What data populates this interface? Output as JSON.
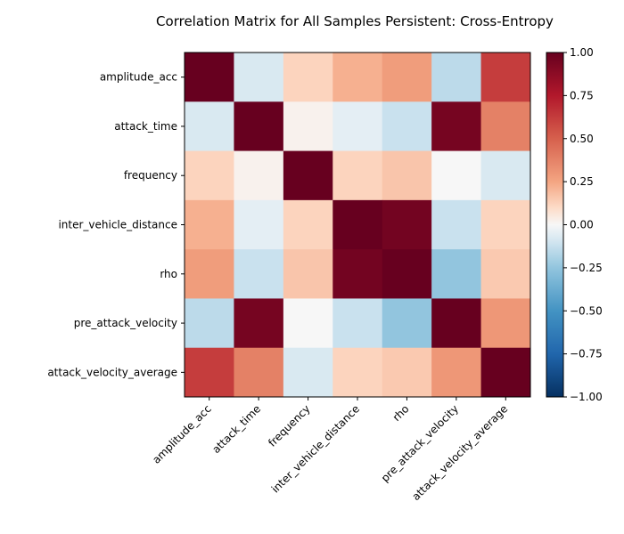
{
  "chart_data": {
    "type": "heatmap",
    "title": "Correlation Matrix for All Samples Persistent: Cross-Entropy",
    "variables": [
      "amplitude_acc",
      "attack_time",
      "frequency",
      "inter_vehicle_distance",
      "rho",
      "pre_attack_velocity",
      "attack_velocity_average"
    ],
    "matrix": [
      [
        1.0,
        -0.08,
        0.12,
        0.22,
        0.28,
        -0.15,
        0.62
      ],
      [
        -0.08,
        1.0,
        0.02,
        -0.05,
        -0.12,
        0.95,
        0.38
      ],
      [
        0.12,
        0.02,
        1.0,
        0.12,
        0.16,
        0.0,
        -0.08
      ],
      [
        0.22,
        -0.05,
        0.12,
        1.0,
        0.96,
        -0.12,
        0.12
      ],
      [
        0.28,
        -0.12,
        0.16,
        0.96,
        1.0,
        -0.25,
        0.15
      ],
      [
        -0.15,
        0.95,
        0.0,
        -0.12,
        -0.25,
        1.0,
        0.3
      ],
      [
        0.62,
        0.38,
        -0.08,
        0.12,
        0.15,
        0.3,
        1.0
      ]
    ],
    "colorbar": {
      "vmin": -1.0,
      "vmax": 1.0,
      "ticks": [
        "1.00",
        "0.75",
        "0.50",
        "0.25",
        "0.00",
        "−0.25",
        "−0.50",
        "−0.75",
        "−1.00"
      ],
      "colormap": "RdBu_r"
    }
  }
}
